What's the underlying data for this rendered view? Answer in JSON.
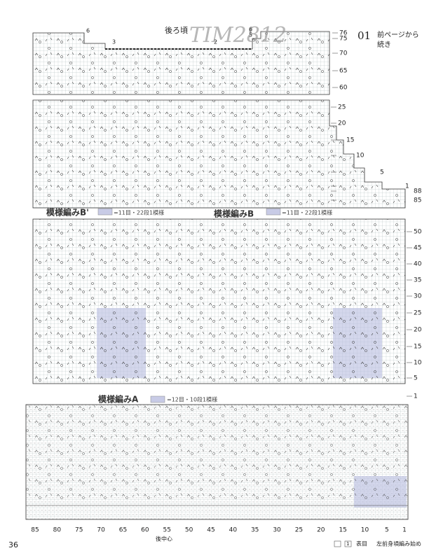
{
  "header": {
    "watermark": "TIM2812",
    "number": "01",
    "note": [
      "前ページから",
      "続き"
    ],
    "chart_label": "後ろ頃"
  },
  "chart1": {
    "row_numbers": [
      76,
      75,
      70,
      65,
      60
    ],
    "marks": [
      6,
      3,
      2,
      6,
      5
    ]
  },
  "chart2": {
    "row_numbers": [
      25,
      20,
      15,
      10,
      5,
      1,
      88,
      85
    ]
  },
  "chart3": {
    "legends": [
      {
        "title": "模様編みB'",
        "repeat": "=11目・22段1模様"
      },
      {
        "title": "模様編みB",
        "repeat": "=11目・22段1模様"
      }
    ],
    "row_numbers": [
      50,
      45,
      40,
      35,
      30,
      25,
      20,
      15,
      10,
      5,
      1
    ]
  },
  "chart4": {
    "title": "模様編みA",
    "repeat": "=12目・10段1模様",
    "column_numbers": [
      85,
      80,
      75,
      70,
      65,
      60,
      55,
      50,
      45,
      40,
      35,
      30,
      25,
      20,
      15,
      10,
      5,
      1
    ],
    "center": "後中心"
  },
  "footer": {
    "page": 36,
    "legend_symbol": "1",
    "legend_text": "表目",
    "start_note": "左前身頃編み始め"
  }
}
